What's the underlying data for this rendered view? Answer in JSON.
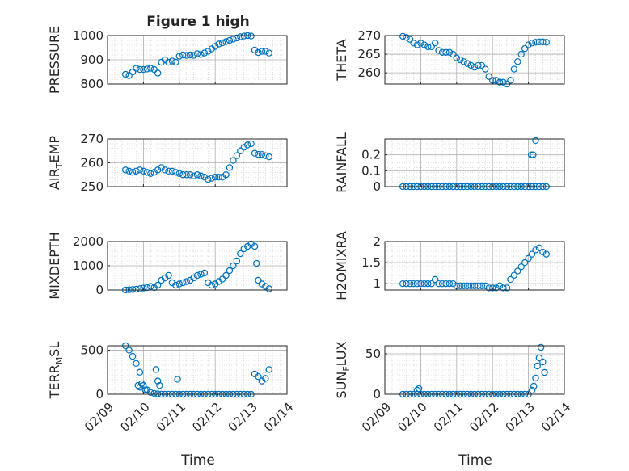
{
  "figure": {
    "title": "Figure 1 high",
    "x_ticks": [
      "02/09",
      "02/10",
      "02/11",
      "02/12",
      "02/13",
      "02/14"
    ],
    "x_label": "Time"
  },
  "colors": {
    "marker": "#0072BD",
    "axis": "#262626",
    "grid": "#c8c8c8",
    "background": "#ffffff"
  },
  "chart_data": [
    {
      "type": "scatter",
      "id": "pressure",
      "title": "Figure 1 high",
      "ylabel": "PRESSURE",
      "ylim": [
        800,
        1000
      ],
      "yticks": [
        800,
        900,
        1000
      ],
      "xlim": [
        0,
        5
      ],
      "xticks": [
        "02/09",
        "02/10",
        "02/11",
        "02/12",
        "02/13",
        "02/14"
      ],
      "xlabel": "",
      "series": [
        {
          "x": [
            0.5,
            0.6,
            0.7,
            0.8,
            0.9,
            1.0,
            1.1,
            1.2,
            1.3,
            1.4,
            1.5,
            1.6,
            1.7,
            1.8,
            1.9,
            2.0,
            2.1,
            2.2,
            2.3,
            2.4,
            2.5,
            2.6,
            2.7,
            2.8,
            2.9,
            3.0,
            3.1,
            3.2,
            3.3,
            3.4,
            3.5,
            3.6,
            3.7,
            3.8,
            3.9,
            4.0,
            4.1,
            4.2,
            4.3,
            4.4,
            4.5
          ],
          "y": [
            840,
            835,
            850,
            865,
            860,
            860,
            862,
            865,
            860,
            845,
            890,
            900,
            890,
            895,
            890,
            915,
            920,
            918,
            920,
            918,
            925,
            922,
            928,
            935,
            945,
            955,
            965,
            970,
            975,
            980,
            985,
            990,
            995,
            998,
            1000,
            998,
            940,
            930,
            935,
            935,
            928
          ]
        }
      ]
    },
    {
      "type": "scatter",
      "id": "theta",
      "title": "",
      "ylabel": "THETA",
      "ylim": [
        257,
        270
      ],
      "yticks": [
        260,
        265,
        270
      ],
      "xlim": [
        0,
        5
      ],
      "xticks": [
        "02/09",
        "02/10",
        "02/11",
        "02/12",
        "02/13",
        "02/14"
      ],
      "xlabel": "",
      "series": [
        {
          "x": [
            0.5,
            0.6,
            0.7,
            0.8,
            0.9,
            1.0,
            1.1,
            1.2,
            1.3,
            1.4,
            1.5,
            1.6,
            1.7,
            1.8,
            1.9,
            2.0,
            2.1,
            2.2,
            2.3,
            2.4,
            2.5,
            2.6,
            2.7,
            2.8,
            2.9,
            3.0,
            3.1,
            3.2,
            3.3,
            3.4,
            3.5,
            3.6,
            3.7,
            3.8,
            3.9,
            4.0,
            4.1,
            4.2,
            4.3,
            4.4,
            4.5
          ],
          "y": [
            269.8,
            269.5,
            269,
            268,
            267.5,
            268,
            267.5,
            267,
            267,
            268,
            266,
            265.5,
            265.5,
            265.5,
            265,
            264,
            263.5,
            263,
            262.5,
            262,
            261.5,
            262,
            262,
            261,
            259,
            258,
            258,
            257.5,
            257.5,
            257,
            258,
            261,
            263,
            265,
            266.5,
            267.5,
            268,
            268.2,
            268.3,
            268.3,
            268.2
          ]
        }
      ]
    },
    {
      "type": "scatter",
      "id": "air_temp",
      "title": "",
      "ylabel": "AIR_TEMP",
      "ylim": [
        250,
        270
      ],
      "yticks": [
        250,
        260,
        270
      ],
      "xlim": [
        0,
        5
      ],
      "xticks": [
        "02/09",
        "02/10",
        "02/11",
        "02/12",
        "02/13",
        "02/14"
      ],
      "xlabel": "",
      "series": [
        {
          "x": [
            0.5,
            0.6,
            0.7,
            0.8,
            0.9,
            1.0,
            1.1,
            1.2,
            1.3,
            1.4,
            1.5,
            1.6,
            1.7,
            1.8,
            1.9,
            2.0,
            2.1,
            2.2,
            2.3,
            2.4,
            2.5,
            2.6,
            2.7,
            2.8,
            2.9,
            3.0,
            3.1,
            3.2,
            3.3,
            3.4,
            3.5,
            3.6,
            3.7,
            3.8,
            3.9,
            4.0,
            4.1,
            4.2,
            4.3,
            4.4,
            4.5
          ],
          "y": [
            257,
            256.5,
            256,
            256.5,
            257,
            256.5,
            256,
            255.5,
            256,
            257,
            258,
            257,
            256.5,
            256.5,
            256,
            255.5,
            255,
            255,
            255,
            254.5,
            255,
            254.5,
            254,
            253,
            253.5,
            254,
            254,
            254,
            255,
            258,
            261,
            263,
            265,
            266.5,
            267.5,
            268,
            264,
            263.5,
            263.5,
            263,
            262.5
          ]
        }
      ]
    },
    {
      "type": "scatter",
      "id": "rainfall",
      "title": "",
      "ylabel": "RAINFALL",
      "ylim": [
        0,
        0.3
      ],
      "yticks": [
        0,
        0.1,
        0.2
      ],
      "xlim": [
        0,
        5
      ],
      "xticks": [
        "02/09",
        "02/10",
        "02/11",
        "02/12",
        "02/13",
        "02/14"
      ],
      "xlabel": "",
      "series": [
        {
          "x": [
            0.5,
            0.6,
            0.7,
            0.8,
            0.9,
            1.0,
            1.1,
            1.2,
            1.3,
            1.4,
            1.5,
            1.6,
            1.7,
            1.8,
            1.9,
            2.0,
            2.1,
            2.2,
            2.3,
            2.4,
            2.5,
            2.6,
            2.7,
            2.8,
            2.9,
            3.0,
            3.1,
            3.2,
            3.3,
            3.4,
            3.5,
            3.6,
            3.7,
            3.8,
            3.9,
            4.0,
            4.1,
            4.2,
            4.3,
            4.4,
            4.5,
            4.08,
            4.13,
            4.2
          ],
          "y": [
            0,
            0,
            0,
            0,
            0,
            0,
            0,
            0,
            0,
            0,
            0,
            0,
            0,
            0,
            0,
            0,
            0,
            0,
            0,
            0,
            0,
            0,
            0,
            0,
            0,
            0,
            0,
            0,
            0,
            0,
            0,
            0,
            0,
            0,
            0,
            0,
            0,
            0,
            0,
            0,
            0,
            0.2,
            0.2,
            0.29
          ]
        }
      ]
    },
    {
      "type": "scatter",
      "id": "mixdepth",
      "title": "",
      "ylabel": "MIXDEPTH",
      "ylim": [
        0,
        2000
      ],
      "yticks": [
        0,
        1000,
        2000
      ],
      "xlim": [
        0,
        5
      ],
      "xticks": [
        "02/09",
        "02/10",
        "02/11",
        "02/12",
        "02/13",
        "02/14"
      ],
      "xlabel": "",
      "series": [
        {
          "x": [
            0.5,
            0.6,
            0.7,
            0.8,
            0.9,
            1.0,
            1.1,
            1.2,
            1.3,
            1.4,
            1.5,
            1.6,
            1.7,
            1.8,
            1.9,
            2.0,
            2.1,
            2.2,
            2.3,
            2.4,
            2.5,
            2.6,
            2.7,
            2.8,
            2.9,
            3.0,
            3.1,
            3.2,
            3.3,
            3.4,
            3.5,
            3.6,
            3.7,
            3.8,
            3.9,
            4.0,
            4.1,
            4.15,
            4.2,
            4.3,
            4.4,
            4.5
          ],
          "y": [
            0,
            10,
            20,
            30,
            50,
            80,
            100,
            150,
            100,
            200,
            400,
            500,
            600,
            300,
            200,
            250,
            300,
            350,
            400,
            500,
            600,
            650,
            700,
            300,
            200,
            250,
            350,
            450,
            600,
            800,
            1000,
            1200,
            1500,
            1700,
            1800,
            1900,
            1800,
            1100,
            400,
            250,
            150,
            50
          ]
        }
      ]
    },
    {
      "type": "scatter",
      "id": "h2omixra",
      "title": "",
      "ylabel": "H2OMIXRA",
      "ylim": [
        0.85,
        2.0
      ],
      "yticks": [
        1,
        1.5,
        2
      ],
      "xlim": [
        0,
        5
      ],
      "xticks": [
        "02/09",
        "02/10",
        "02/11",
        "02/12",
        "02/13",
        "02/14"
      ],
      "xlabel": "",
      "series": [
        {
          "x": [
            0.5,
            0.6,
            0.7,
            0.8,
            0.9,
            1.0,
            1.1,
            1.2,
            1.3,
            1.4,
            1.5,
            1.6,
            1.7,
            1.8,
            1.9,
            2.0,
            2.1,
            2.2,
            2.3,
            2.4,
            2.5,
            2.6,
            2.7,
            2.8,
            2.9,
            3.0,
            3.1,
            3.2,
            3.3,
            3.4,
            3.5,
            3.6,
            3.7,
            3.8,
            3.9,
            4.0,
            4.1,
            4.2,
            4.3,
            4.4,
            4.5
          ],
          "y": [
            1,
            1,
            1,
            1,
            1,
            1,
            1,
            1,
            1,
            1.1,
            1,
            1,
            1,
            1,
            1,
            0.95,
            0.95,
            0.95,
            0.95,
            0.95,
            0.95,
            0.95,
            0.95,
            0.95,
            0.9,
            0.9,
            0.9,
            0.95,
            0.9,
            0.9,
            1.1,
            1.2,
            1.3,
            1.4,
            1.5,
            1.6,
            1.7,
            1.8,
            1.85,
            1.75,
            1.7
          ]
        }
      ]
    },
    {
      "type": "scatter",
      "id": "terr_msl",
      "title": "",
      "ylabel": "TERR_MSL",
      "ylim": [
        0,
        550
      ],
      "yticks": [
        0,
        500
      ],
      "xlim": [
        0,
        5
      ],
      "xticks": [
        "02/09",
        "02/10",
        "02/11",
        "02/12",
        "02/13",
        "02/14"
      ],
      "xlabel": "",
      "series": [
        {
          "x": [
            0.5,
            0.6,
            0.7,
            0.8,
            0.9,
            1.0,
            1.1,
            1.2,
            1.3,
            1.4,
            1.5,
            1.6,
            1.7,
            1.8,
            1.9,
            2.0,
            2.1,
            2.2,
            2.3,
            2.4,
            2.5,
            2.6,
            2.7,
            2.8,
            2.9,
            3.0,
            3.1,
            3.2,
            3.3,
            3.4,
            3.5,
            3.6,
            3.7,
            3.8,
            3.9,
            4.0,
            4.1,
            4.2,
            4.3,
            4.4,
            4.5,
            0.85,
            0.9,
            0.95,
            1.05,
            1.35,
            1.4,
            1.45,
            1.95
          ],
          "y": [
            550,
            500,
            430,
            350,
            250,
            100,
            50,
            20,
            10,
            5,
            0,
            0,
            0,
            0,
            0,
            0,
            0,
            0,
            0,
            0,
            0,
            0,
            0,
            0,
            0,
            0,
            0,
            0,
            0,
            0,
            0,
            0,
            0,
            0,
            0,
            0,
            230,
            200,
            150,
            180,
            280,
            100,
            80,
            120,
            50,
            280,
            150,
            100,
            170
          ]
        }
      ]
    },
    {
      "type": "scatter",
      "id": "sun_flux",
      "title": "",
      "ylabel": "SUN_FLUX",
      "ylim": [
        0,
        60
      ],
      "yticks": [
        0,
        50
      ],
      "xlim": [
        0,
        5
      ],
      "xticks": [
        "02/09",
        "02/10",
        "02/11",
        "02/12",
        "02/13",
        "02/14"
      ],
      "xlabel": "Time",
      "series": [
        {
          "x": [
            0.5,
            0.6,
            0.7,
            0.8,
            0.9,
            1.0,
            1.1,
            1.2,
            1.3,
            1.4,
            1.5,
            1.6,
            1.7,
            1.8,
            1.9,
            2.0,
            2.1,
            2.2,
            2.3,
            2.4,
            2.5,
            2.6,
            2.7,
            2.8,
            2.9,
            3.0,
            3.1,
            3.2,
            3.3,
            3.4,
            3.5,
            3.6,
            3.7,
            3.8,
            3.9,
            4.0,
            4.1,
            4.15,
            4.2,
            4.25,
            4.3,
            4.35,
            4.4,
            4.45,
            0.9,
            0.95
          ],
          "y": [
            0,
            0,
            0,
            0,
            0,
            0,
            0,
            0,
            0,
            0,
            0,
            0,
            0,
            0,
            0,
            0,
            0,
            0,
            0,
            0,
            0,
            0,
            0,
            0,
            0,
            0,
            0,
            0,
            0,
            0,
            0,
            0,
            0,
            0,
            0,
            0,
            5,
            10,
            20,
            35,
            45,
            58,
            40,
            27,
            5,
            7
          ]
        }
      ]
    }
  ]
}
